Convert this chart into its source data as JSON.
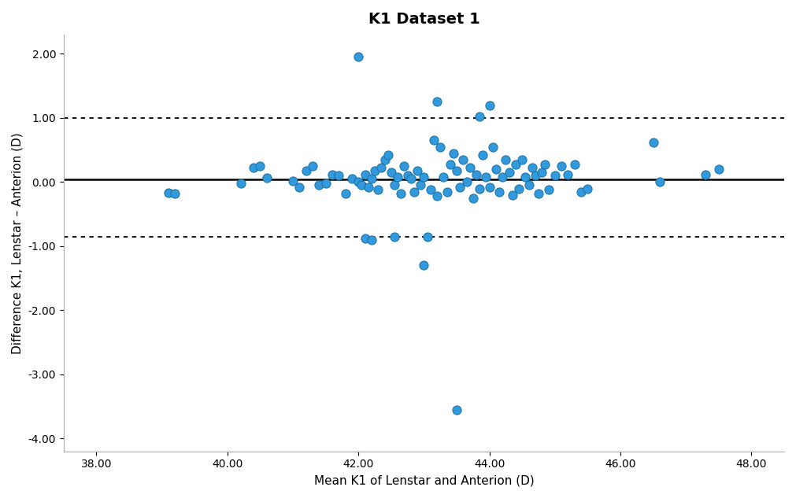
{
  "title": "K1 Dataset 1",
  "xlabel": "Mean K1 of Lenstar and Anterion (D)",
  "ylabel": "Difference K1, Lenstar – Anterion (D)",
  "mean_diff": 0.04,
  "loa_upper": 1.0,
  "loa_lower": -0.86,
  "xlim": [
    37.5,
    48.5
  ],
  "ylim": [
    -4.2,
    2.3
  ],
  "xticks": [
    38.0,
    40.0,
    42.0,
    44.0,
    46.0,
    48.0
  ],
  "yticks": [
    -4.0,
    -3.0,
    -2.0,
    -1.0,
    0.0,
    1.0,
    2.0
  ],
  "dot_color": "#3399dd",
  "dot_edgecolor": "#1a6fa0",
  "line_color": "black",
  "background_color": "white",
  "scatter_x": [
    39.1,
    39.2,
    40.2,
    40.4,
    40.5,
    40.6,
    41.0,
    41.1,
    41.2,
    41.3,
    41.4,
    41.5,
    41.6,
    41.7,
    41.8,
    41.9,
    42.0,
    42.0,
    42.05,
    42.1,
    42.15,
    42.2,
    42.25,
    42.3,
    42.35,
    42.4,
    42.45,
    42.5,
    42.55,
    42.6,
    42.65,
    42.7,
    42.75,
    42.8,
    42.85,
    42.9,
    42.95,
    43.0,
    43.0,
    43.05,
    43.1,
    43.15,
    43.2,
    43.25,
    43.3,
    43.35,
    43.4,
    43.45,
    43.5,
    43.55,
    43.6,
    43.65,
    43.7,
    43.75,
    43.8,
    43.85,
    43.9,
    43.95,
    44.0,
    44.05,
    44.1,
    44.15,
    44.2,
    44.25,
    44.3,
    44.35,
    44.4,
    44.45,
    44.5,
    44.55,
    44.6,
    44.65,
    44.7,
    44.75,
    44.8,
    44.85,
    44.9,
    45.0,
    45.1,
    45.2,
    45.3,
    45.4,
    45.5,
    46.5,
    46.6,
    47.3,
    47.5,
    42.1,
    42.2,
    42.55,
    43.5,
    43.85,
    44.0,
    43.2
  ],
  "scatter_y": [
    -0.17,
    -0.18,
    -0.02,
    0.22,
    0.25,
    0.06,
    0.02,
    -0.08,
    0.18,
    0.25,
    -0.05,
    -0.02,
    0.12,
    0.1,
    -0.18,
    0.05,
    0.0,
    1.95,
    -0.05,
    0.12,
    -0.08,
    0.05,
    0.18,
    -0.12,
    0.22,
    0.35,
    0.42,
    0.15,
    -0.05,
    0.08,
    -0.18,
    0.25,
    0.1,
    0.05,
    -0.15,
    0.18,
    -0.05,
    0.08,
    -1.3,
    -0.85,
    -0.12,
    0.65,
    -0.22,
    0.55,
    0.08,
    -0.15,
    0.28,
    0.45,
    0.18,
    -0.08,
    0.35,
    0.0,
    0.22,
    -0.25,
    0.12,
    -0.1,
    0.42,
    0.08,
    -0.08,
    0.55,
    0.2,
    -0.15,
    0.08,
    0.35,
    0.15,
    -0.2,
    0.28,
    -0.1,
    0.35,
    0.08,
    -0.05,
    0.22,
    0.1,
    -0.18,
    0.15,
    0.28,
    -0.12,
    0.1,
    0.25,
    0.12,
    0.28,
    -0.15,
    -0.1,
    0.62,
    0.0,
    0.12,
    0.2,
    -0.88,
    -0.9,
    -0.85,
    -3.55,
    1.02,
    1.2,
    1.25
  ],
  "title_fontsize": 14,
  "label_fontsize": 11,
  "tick_fontsize": 10
}
